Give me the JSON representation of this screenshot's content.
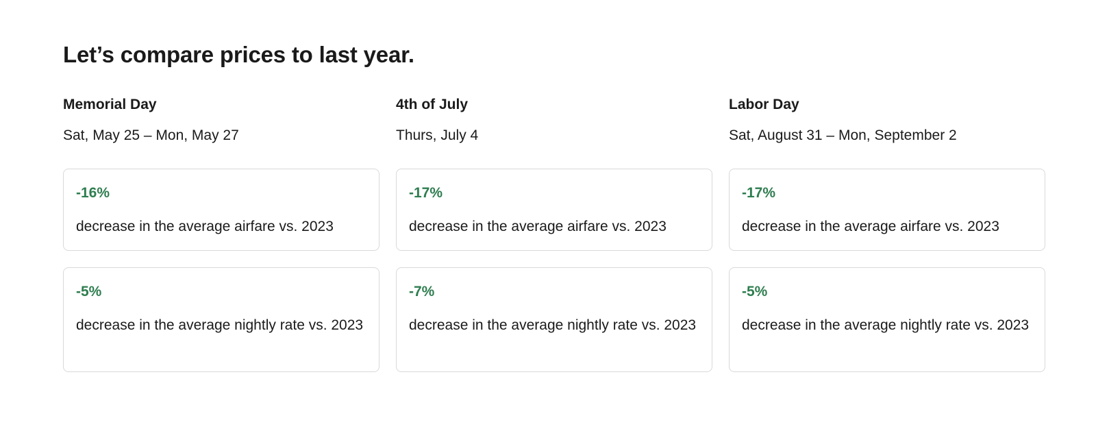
{
  "title": "Let’s compare prices to last year.",
  "colors": {
    "accent_green": "#2e7d4f",
    "text": "#1a1a1a",
    "card_border": "#d9d9d9"
  },
  "holidays": [
    {
      "name": "Memorial Day",
      "dates": "Sat, May 25 – Mon, May 27",
      "airfare": {
        "value": "-16%",
        "label": "decrease in the average airfare vs. 2023"
      },
      "nightly": {
        "value": "-5%",
        "label": "decrease in the average nightly rate vs. 2023"
      }
    },
    {
      "name": "4th of July",
      "dates": "Thurs, July 4",
      "airfare": {
        "value": "-17%",
        "label": "decrease in the average airfare vs. 2023"
      },
      "nightly": {
        "value": "-7%",
        "label": "decrease in the average nightly rate vs. 2023"
      }
    },
    {
      "name": "Labor Day",
      "dates": "Sat, August 31 – Mon, September 2",
      "airfare": {
        "value": "-17%",
        "label": "decrease in the average airfare vs. 2023"
      },
      "nightly": {
        "value": "-5%",
        "label": "decrease in the average nightly rate vs. 2023"
      }
    }
  ]
}
